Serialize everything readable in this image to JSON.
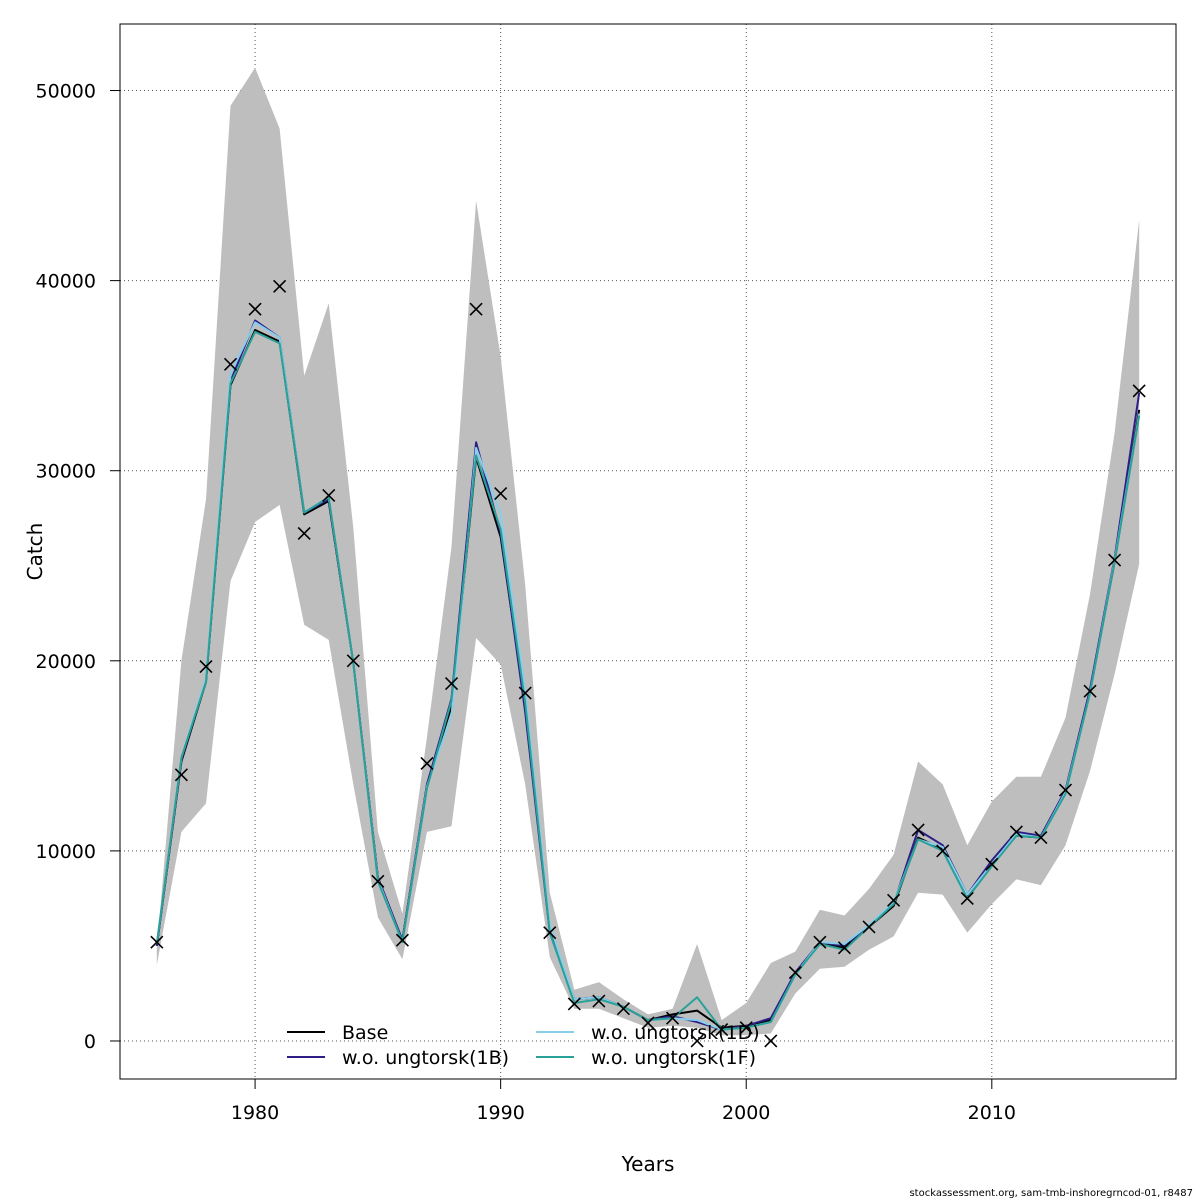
{
  "chart_data": {
    "type": "line",
    "xlabel": "Years",
    "ylabel": "Catch",
    "xlim": [
      1974.5,
      2017.5
    ],
    "ylim": [
      -2000,
      53500
    ],
    "x_ticks": [
      1980,
      1990,
      2000,
      2010
    ],
    "y_ticks": [
      0,
      10000,
      20000,
      30000,
      40000,
      50000
    ],
    "grid": true,
    "legend_position": "bottom-left",
    "years": [
      1976,
      1977,
      1978,
      1979,
      1980,
      1981,
      1982,
      1983,
      1984,
      1985,
      1986,
      1987,
      1988,
      1989,
      1990,
      1991,
      1992,
      1993,
      1994,
      1995,
      1996,
      1997,
      1998,
      1999,
      2000,
      2001,
      2002,
      2003,
      2004,
      2005,
      2006,
      2007,
      2008,
      2009,
      2010,
      2011,
      2012,
      2013,
      2014,
      2015,
      2016
    ],
    "observed": [
      5200,
      14000,
      19700,
      35600,
      38500,
      39700,
      26700,
      28700,
      20000,
      8400,
      5300,
      14600,
      18800,
      38500,
      28800,
      18300,
      5700,
      1950,
      2100,
      1700,
      950,
      1200,
      0,
      600,
      700,
      0,
      3600,
      5200,
      4900,
      6000,
      7400,
      11100,
      10000,
      7500,
      9300,
      11000,
      10700,
      13200,
      18400,
      25300,
      34200
    ],
    "confidence_band": {
      "upper": [
        4800,
        20000,
        28500,
        49200,
        51200,
        48000,
        35000,
        38800,
        27000,
        11000,
        6700,
        16000,
        26000,
        44200,
        36000,
        24000,
        7800,
        2700,
        3100,
        2200,
        1400,
        1700,
        5100,
        1100,
        2000,
        4100,
        4700,
        6900,
        6600,
        8000,
        9800,
        14700,
        13500,
        10300,
        12600,
        13900,
        13900,
        17000,
        23500,
        32000,
        43200
      ],
      "lower": [
        4000,
        11000,
        12500,
        24200,
        27300,
        28200,
        21900,
        21100,
        13500,
        6500,
        4300,
        11000,
        11300,
        21200,
        19800,
        13500,
        4400,
        1700,
        1700,
        1200,
        700,
        800,
        700,
        300,
        300,
        400,
        2500,
        3800,
        3900,
        4800,
        5500,
        7800,
        7700,
        5700,
        7200,
        8500,
        8200,
        10300,
        14200,
        19300,
        25100
      ]
    },
    "series": [
      {
        "name": "Base",
        "color": "#000000",
        "values": [
          5000,
          14700,
          18900,
          34500,
          37400,
          36800,
          27700,
          28400,
          19900,
          8600,
          5300,
          13500,
          17600,
          30700,
          26500,
          17600,
          5800,
          2200,
          2300,
          1800,
          1100,
          1400,
          1600,
          700,
          800,
          1100,
          3600,
          5100,
          4900,
          6000,
          7100,
          10700,
          10100,
          7600,
          9300,
          10800,
          10700,
          13100,
          18400,
          25200,
          33200
        ]
      },
      {
        "name": "w.o. ungtorsk(1B)",
        "color": "#2d1e87",
        "values": [
          5000,
          14800,
          19000,
          34700,
          37900,
          37000,
          27800,
          28500,
          19900,
          8600,
          5300,
          13500,
          18000,
          31500,
          26700,
          17300,
          5700,
          2200,
          2300,
          1800,
          1100,
          1300,
          1000,
          600,
          800,
          1200,
          3600,
          5200,
          5000,
          6100,
          7200,
          11100,
          10300,
          7700,
          9500,
          11000,
          10800,
          13200,
          18500,
          25400,
          34100
        ]
      },
      {
        "name": "w.o. ungtorsk(1D)",
        "color": "#87ceeb",
        "values": [
          5100,
          14900,
          19100,
          35100,
          37800,
          37000,
          27800,
          28600,
          19900,
          8500,
          5200,
          13400,
          17100,
          31200,
          27700,
          18400,
          6100,
          2200,
          2300,
          1800,
          1100,
          1200,
          1100,
          600,
          700,
          1000,
          3500,
          5200,
          5100,
          6100,
          7300,
          10600,
          10200,
          7700,
          9300,
          10900,
          10700,
          13100,
          18300,
          25300,
          33000
        ]
      },
      {
        "name": "w.o. ungtorsk(1F)",
        "color": "#2aa198",
        "values": [
          5100,
          14900,
          18900,
          34600,
          37300,
          36700,
          27800,
          28600,
          19900,
          8400,
          5200,
          13300,
          17900,
          30800,
          26900,
          17800,
          5700,
          2000,
          2200,
          1800,
          1100,
          1200,
          2300,
          600,
          700,
          1000,
          3500,
          5100,
          4800,
          6000,
          7200,
          10600,
          10000,
          7500,
          9200,
          10800,
          10700,
          13000,
          18300,
          25200,
          32900
        ]
      }
    ]
  },
  "footer": "stockassessment.org, sam-tmb-inshoregrncod-01, r8487"
}
